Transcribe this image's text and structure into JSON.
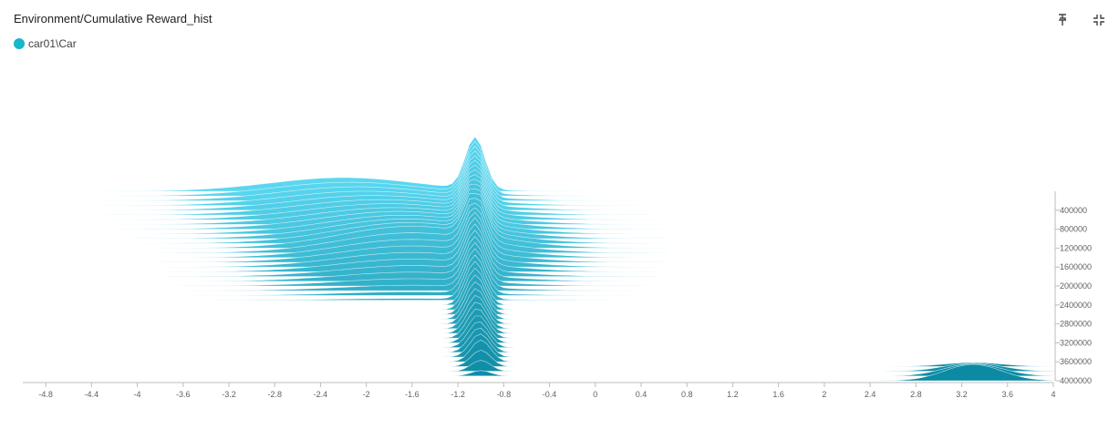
{
  "card": {
    "title": "Environment/Cumulative Reward_hist",
    "pin_icon": "pin-icon",
    "collapse_icon": "collapse-icon"
  },
  "legend": {
    "run_name": "car01\\Car",
    "color": "#17b7cd"
  },
  "colors": {
    "base_light": "#5ad7f0",
    "base_dark": "#0d8aa3",
    "axis": "#bdbdbd",
    "tick_text": "#616161"
  },
  "chart_data": {
    "type": "histogram",
    "mode": "offset",
    "title": "Environment/Cumulative Reward_hist",
    "x_ticks": [
      "-4.8",
      "-4.4",
      "-4",
      "-3.6",
      "-3.2",
      "-2.8",
      "-2.4",
      "-2",
      "-1.6",
      "-1.2",
      "-0.8",
      "-0.4",
      "0",
      "0.4",
      "0.8",
      "1.2",
      "1.6",
      "2",
      "2.4",
      "2.8",
      "3.2",
      "3.6",
      "4"
    ],
    "y_ticks": [
      "400000",
      "800000",
      "1200000",
      "1600000",
      "2000000",
      "2400000",
      "2800000",
      "3200000",
      "3600000",
      "4000000"
    ],
    "xlim": [
      -5.0,
      4.0
    ],
    "ylim": [
      0,
      4000000
    ],
    "series": [
      {
        "name": "car01\\Car",
        "step_range": [
          0,
          4000000
        ]
      }
    ],
    "distribution_summary": [
      {
        "step": 0,
        "peaks": [
          {
            "x": -2.2,
            "height": 0.25
          },
          {
            "x": -1.05,
            "height": 0.95
          }
        ]
      },
      {
        "step": 1200000,
        "peaks": [
          {
            "x": -1.6,
            "height": 0.4
          },
          {
            "x": -1.05,
            "height": 0.85
          }
        ]
      },
      {
        "step": 2400000,
        "peaks": [
          {
            "x": -1.05,
            "height": 0.8
          }
        ]
      },
      {
        "step": 3600000,
        "peaks": [
          {
            "x": -1.0,
            "height": 0.4
          }
        ]
      },
      {
        "step": 4000000,
        "peaks": [
          {
            "x": 3.3,
            "height": 0.3
          }
        ]
      }
    ]
  }
}
